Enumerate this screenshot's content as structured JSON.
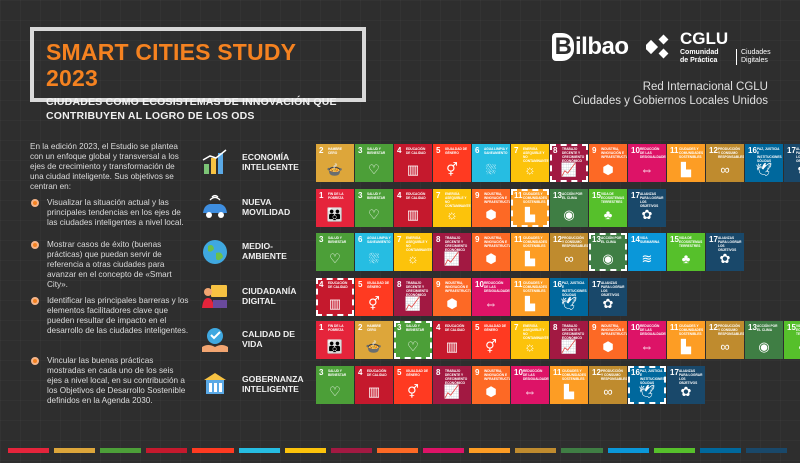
{
  "header": {
    "title": "SMART CITIES STUDY 2023",
    "subtitle_line1": "CIUDADES COMO ECOSISTEMAS DE INNOVACIÓN QUE",
    "subtitle_line2": "CONTRIBUYEN AL LOGRO DE LOS ODS"
  },
  "logos": {
    "bilbao_initial": "B",
    "bilbao_rest": "ilbao",
    "cglu_name": "CGLU",
    "cglu_sub1_line1": "Comunidad",
    "cglu_sub1_line2": "de Práctica",
    "cglu_sub2_line1": "Ciudades",
    "cglu_sub2_line2": "Digitales"
  },
  "network": {
    "line1": "Red Internacional CGLU",
    "line2": "Ciudades y Gobiernos Locales Unidos"
  },
  "intro": "En la edición 2023, el Estudio se plantea con un enfoque global y transversal a los ejes de crecimiento y transformación de una ciudad inteligente. Sus objetivos se centran en:",
  "bullets": [
    "Visualizar la situación actual y las principales tendencias en los ejes de las ciudades inteligentes a nivel local.",
    "Mostrar casos de éxito (buenas prácticas) que puedan servir de referencia a otras ciudades para avanzar en el concepto de «Smart City».",
    "Identificar las principales barreras y los elementos facilitadores clave que pueden resultar de impacto en el desarrollo de las ciudades inteligentes.",
    "Vincular las buenas prácticas mostradas en cada uno de los seis ejes a nivel local, en su contribución a los Objetivos de Desarrollo Sostenible definidos en la Agenda 2030."
  ],
  "axes": [
    {
      "line1": "ECONOMÍA",
      "line2": "INTELIGENTE",
      "icon": "economy-icon"
    },
    {
      "line1": "NUEVA",
      "line2": "MOVILIDAD",
      "icon": "mobility-icon"
    },
    {
      "line1": "MEDIO-",
      "line2": "AMBIENTE",
      "icon": "environment-icon"
    },
    {
      "line1": "CIUDADANÍA",
      "line2": "DIGITAL",
      "icon": "citizenship-icon"
    },
    {
      "line1": "CALIDAD DE",
      "line2": "VIDA",
      "icon": "quality-of-life-icon"
    },
    {
      "line1": "GOBERNANZA",
      "line2": "INTELIGENTE",
      "icon": "governance-icon"
    }
  ],
  "sdg": {
    "1": {
      "name": "FIN DE LA POBREZA",
      "color": "#e5243b",
      "glyph": "👪"
    },
    "2": {
      "name": "HAMBRE CERO",
      "color": "#dda63a",
      "glyph": "🍲"
    },
    "3": {
      "name": "SALUD Y BIENESTAR",
      "color": "#4c9f38",
      "glyph": "♡"
    },
    "4": {
      "name": "EDUCACIÓN DE CALIDAD",
      "color": "#c5192d",
      "glyph": "▥"
    },
    "5": {
      "name": "IGUALDAD DE GÉNERO",
      "color": "#ff3a21",
      "glyph": "⚥"
    },
    "6": {
      "name": "AGUA LIMPIA Y SANEAMIENTO",
      "color": "#26bde2",
      "glyph": "⛆"
    },
    "7": {
      "name": "ENERGÍA ASEQUIBLE Y NO CONTAMINANTE",
      "color": "#fcc30b",
      "glyph": "☼"
    },
    "8": {
      "name": "TRABAJO DECENTE Y CRECIMIENTO ECONÓMICO",
      "color": "#a21942",
      "glyph": "📈"
    },
    "9": {
      "name": "INDUSTRIA, INNOVACIÓN E INFRAESTRUCTURA",
      "color": "#fd6925",
      "glyph": "⬢"
    },
    "10": {
      "name": "REDUCCIÓN DE LAS DESIGUALDADES",
      "color": "#dd1367",
      "glyph": "⇔"
    },
    "11": {
      "name": "CIUDADES Y COMUNIDADES SOSTENIBLES",
      "color": "#fd9d24",
      "glyph": "▙"
    },
    "12": {
      "name": "PRODUCCIÓN Y CONSUMO RESPONSABLES",
      "color": "#bf8b2e",
      "glyph": "∞"
    },
    "13": {
      "name": "ACCIÓN POR EL CLIMA",
      "color": "#3f7e44",
      "glyph": "◉"
    },
    "14": {
      "name": "VIDA SUBMARINA",
      "color": "#0a97d9",
      "glyph": "≋"
    },
    "15": {
      "name": "VIDA DE ECOSISTEMAS TERRESTRES",
      "color": "#56c02b",
      "glyph": "♣"
    },
    "16": {
      "name": "PAZ, JUSTICIA E INSTITUCIONES SÓLIDAS",
      "color": "#00689d",
      "glyph": "🕊"
    },
    "17": {
      "name": "ALIANZAS PARA LOGRAR LOS OBJETIVOS",
      "color": "#19486a",
      "glyph": "✿"
    }
  },
  "rows": [
    {
      "goals": [
        2,
        3,
        4,
        5,
        6,
        7,
        8,
        9,
        10,
        11,
        12,
        16,
        17
      ],
      "highlighted": [
        8
      ]
    },
    {
      "goals": [
        1,
        3,
        4,
        7,
        9,
        11,
        13,
        15,
        17
      ],
      "highlighted": [
        11
      ]
    },
    {
      "goals": [
        3,
        6,
        7,
        8,
        9,
        11,
        12,
        13,
        14,
        15,
        17
      ],
      "highlighted": [
        13
      ]
    },
    {
      "goals": [
        4,
        5,
        8,
        9,
        10,
        11,
        16,
        17
      ],
      "highlighted": [
        4
      ]
    },
    {
      "goals": [
        1,
        2,
        3,
        4,
        5,
        7,
        8,
        9,
        10,
        11,
        12,
        13,
        15
      ],
      "highlighted": [
        3
      ]
    },
    {
      "goals": [
        3,
        4,
        5,
        8,
        9,
        10,
        11,
        12,
        16,
        17
      ],
      "highlighted": [
        16
      ]
    }
  ],
  "stripe_colors": [
    "#e5243b",
    "#dda63a",
    "#4c9f38",
    "#c5192d",
    "#ff3a21",
    "#26bde2",
    "#fcc30b",
    "#a21942",
    "#fd6925",
    "#dd1367",
    "#fd9d24",
    "#bf8b2e",
    "#3f7e44",
    "#0a97d9",
    "#56c02b",
    "#00689d",
    "#19486a"
  ]
}
